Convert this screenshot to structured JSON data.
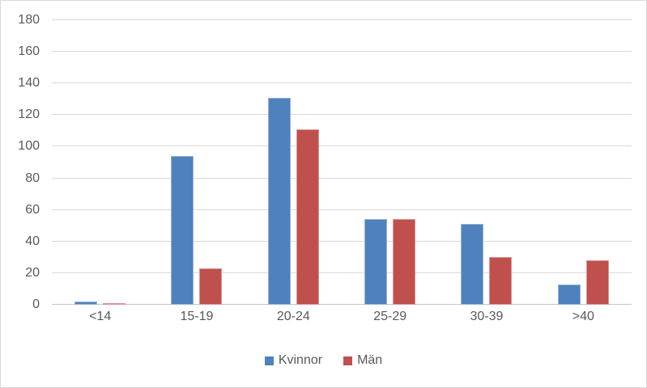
{
  "chart_data": {
    "type": "bar",
    "title": "",
    "xlabel": "",
    "ylabel": "",
    "categories": [
      "<14",
      "15-19",
      "20-24",
      "25-29",
      "30-39",
      ">40"
    ],
    "series": [
      {
        "name": "Kvinnor",
        "color": "#4F81BD",
        "border_color": "#95B3D7",
        "values": [
          2,
          94,
          131,
          54,
          51,
          13
        ]
      },
      {
        "name": "Män",
        "color": "#C0504D",
        "border_color": "#D99694",
        "values": [
          1,
          23,
          111,
          54,
          30,
          28
        ]
      }
    ],
    "ylim": [
      0,
      180
    ],
    "ytick_step": 20,
    "yticks": [
      0,
      20,
      40,
      60,
      80,
      100,
      120,
      140,
      160,
      180
    ],
    "grid": true,
    "legend_position": "bottom",
    "colors": {
      "axis_text": "#595959",
      "gridline": "#D9D9D9",
      "chart_border": "#D9D9D9",
      "background": "#FFFFFF"
    }
  }
}
